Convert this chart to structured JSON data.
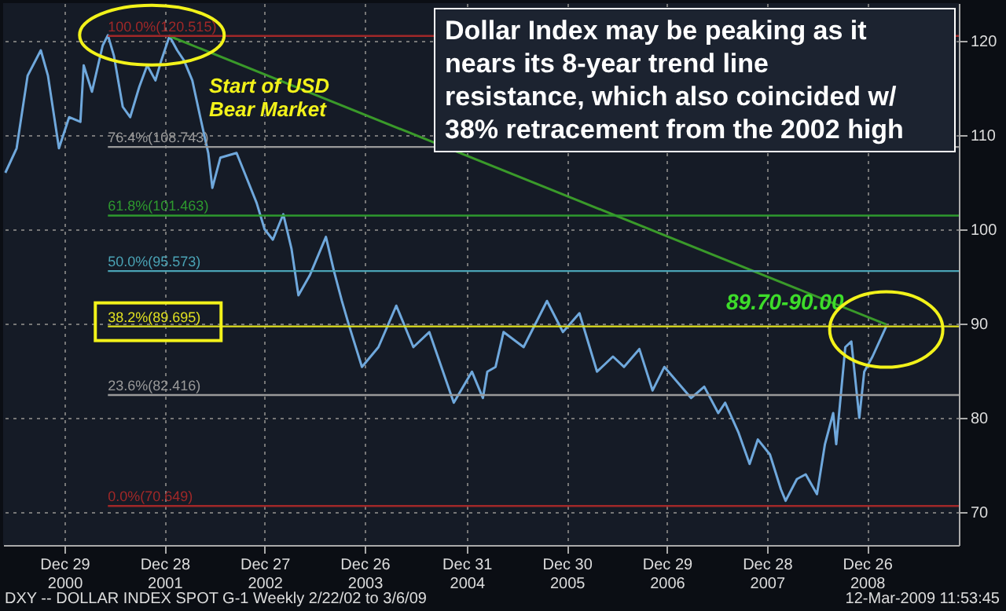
{
  "chart_data": {
    "type": "line",
    "annotations": [
      "Start of USD Bear Market",
      "89.70-90.00",
      "Dollar Index may be peaking as it nears its 8-year trend line resistance, which also coincided w/ 38% retracement from the 2002 high",
      "DXY -- DOLLAR INDEX SPOT G-1 Weekly 2/22/02 to 3/6/09",
      "12-Mar-2009 11:53:45"
    ],
    "series": [
      {
        "color": "#6fa8dc",
        "x": [
          "2000-05-28",
          "2000-07-08",
          "2000-08-17",
          "2000-10-04",
          "2000-10-30",
          "2000-12-09",
          "2001-01-15",
          "2001-02-25",
          "2001-03-09",
          "2001-04-08",
          "2001-05-17",
          "2001-06-05",
          "2001-06-27",
          "2001-07-29",
          "2001-08-25",
          "2001-09-27",
          "2001-10-26",
          "2001-11-25",
          "2001-12-16",
          "2002-01-15",
          "2002-02-12",
          "2002-03-09",
          "2002-04-08",
          "2002-05-07",
          "2002-06-05",
          "2002-06-20",
          "2002-07-19",
          "2002-09-16",
          "2002-10-15",
          "2002-11-28",
          "2002-12-27",
          "2003-01-26",
          "2003-03-05",
          "2003-04-04",
          "2003-04-29",
          "2003-06-09",
          "2003-08-07",
          "2003-09-05",
          "2003-10-04",
          "2003-10-30",
          "2003-12-16",
          "2004-02-14",
          "2004-04-19",
          "2004-06-20",
          "2004-08-17",
          "2004-11-14",
          "2005-01-19",
          "2005-02-28",
          "2005-03-16",
          "2005-04-15",
          "2005-05-14",
          "2005-07-26",
          "2005-10-19",
          "2005-12-16",
          "2006-02-14",
          "2006-04-19",
          "2006-06-16",
          "2006-07-26",
          "2006-09-20",
          "2006-11-07",
          "2006-12-20",
          "2007-03-27",
          "2007-05-14",
          "2007-07-04",
          "2007-07-29",
          "2007-09-16",
          "2007-10-26",
          "2007-11-25",
          "2008-01-08",
          "2008-02-17",
          "2008-03-05",
          "2008-04-15",
          "2008-05-17",
          "2008-06-27",
          "2008-07-26",
          "2008-08-25",
          "2008-09-05",
          "2008-10-08",
          "2008-10-30",
          "2008-11-28",
          "2008-12-16",
          "2009-01-15",
          "2009-03-06"
        ],
        "values": [
          106.0,
          108.6,
          116.3,
          119.0,
          116.3,
          108.6,
          111.9,
          111.4,
          117.4,
          114.6,
          119.5,
          120.6,
          118.4,
          113.0,
          111.9,
          115.1,
          117.4,
          115.8,
          117.9,
          120.5,
          119.0,
          117.9,
          115.8,
          111.9,
          108.1,
          104.4,
          107.6,
          108.1,
          106.0,
          102.8,
          100.0,
          98.9,
          101.6,
          97.9,
          93.0,
          95.1,
          99.2,
          95.6,
          92.4,
          89.8,
          85.4,
          87.5,
          91.9,
          87.5,
          89.1,
          81.6,
          84.9,
          82.1,
          84.9,
          85.4,
          89.1,
          87.5,
          92.4,
          89.1,
          91.1,
          84.9,
          86.5,
          85.4,
          87.3,
          82.9,
          85.4,
          82.1,
          83.3,
          80.5,
          81.6,
          78.4,
          75.1,
          77.7,
          76.1,
          72.4,
          71.2,
          73.5,
          74.0,
          71.9,
          77.2,
          80.5,
          77.2,
          87.5,
          88.1,
          80.0,
          84.9,
          86.5,
          89.7
        ]
      },
      {
        "type": "line",
        "color": "#3a9a2a",
        "x": [
          "2002-01-15",
          "2009-03-06"
        ],
        "values": [
          120.5,
          89.9
        ]
      }
    ],
    "ref_lines": [
      {
        "axis": "y",
        "value": 120.515,
        "label": "100.0%(120.515)",
        "color": "#a02828"
      },
      {
        "axis": "y",
        "value": 108.743,
        "label": "76.4%(108.743)",
        "color": "#9a9a9a"
      },
      {
        "axis": "y",
        "value": 101.463,
        "label": "61.8%(101.463)",
        "color": "#2e9a2e"
      },
      {
        "axis": "y",
        "value": 95.573,
        "label": "50.0%(95.573)",
        "color": "#4aa3b5"
      },
      {
        "axis": "y",
        "value": 89.695,
        "label": "38.2%(89.695)",
        "color": "#e0e020"
      },
      {
        "axis": "y",
        "value": 82.416,
        "label": "23.6%(82.416)",
        "color": "#9a9a9a"
      },
      {
        "axis": "y",
        "value": 70.649,
        "label": "0.0%(70.649)",
        "color": "#a02828"
      }
    ],
    "xlim": [
      "2000-05-20",
      "2009-11-25"
    ],
    "xticks": [
      {
        "value": "2000-12-29",
        "label": "Dec 29 2000"
      },
      {
        "value": "2001-12-28",
        "label": "Dec 28 2001"
      },
      {
        "value": "2002-12-27",
        "label": "Dec 27 2002"
      },
      {
        "value": "2003-12-26",
        "label": "Dec 26 2003"
      },
      {
        "value": "2004-12-31",
        "label": "Dec 31 2004"
      },
      {
        "value": "2005-12-30",
        "label": "Dec 30 2005"
      },
      {
        "value": "2006-12-29",
        "label": "Dec 29 2006"
      },
      {
        "value": "2007-12-28",
        "label": "Dec 28 2007"
      },
      {
        "value": "2008-12-26",
        "label": "Dec 26 2008"
      }
    ],
    "ylim": [
      66.5,
      124
    ],
    "yticks": [
      70,
      80,
      90,
      100,
      110,
      120
    ],
    "grid": true
  }
}
